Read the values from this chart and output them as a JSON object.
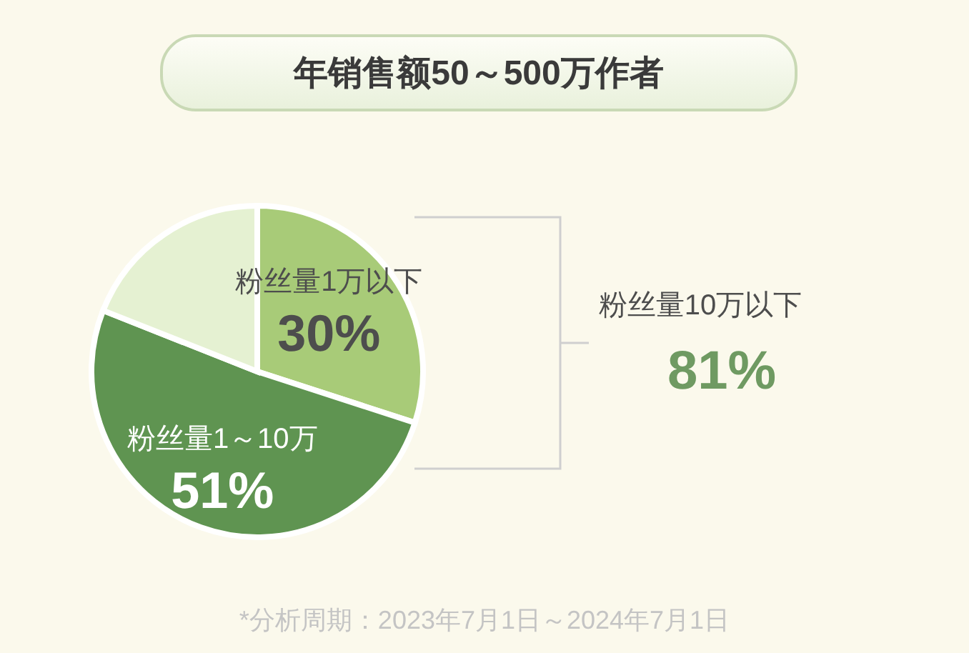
{
  "chart_data": {
    "type": "pie",
    "title": "年销售额50～500万作者",
    "categories": [
      "粉丝量1万以下",
      "粉丝量1～10万",
      null
    ],
    "values": [
      30,
      51,
      19
    ],
    "colors": [
      "#a8cb78",
      "#5f9451",
      "#e5f1d2"
    ],
    "value_labels": [
      "30%",
      "51%",
      null
    ],
    "annotations": [
      "粉丝量10万以下",
      "81%",
      "*分析周期：2023年7月1日～2024年7月1日"
    ]
  }
}
